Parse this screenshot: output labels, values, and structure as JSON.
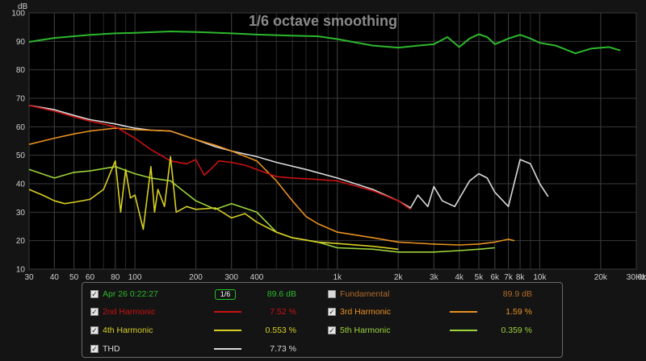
{
  "chart_data": {
    "type": "line",
    "title": "1/6 octave smoothing",
    "ylabel": "dB",
    "xlabel": "Hz",
    "x_scale": "log",
    "xlim": [
      30,
      30000
    ],
    "ylim": [
      10,
      100
    ],
    "grid": true,
    "x_ticks": [
      30,
      40,
      50,
      60,
      80,
      100,
      200,
      300,
      400,
      1000,
      2000,
      3000,
      4000,
      5000,
      6000,
      7000,
      8000,
      10000,
      20000,
      30000
    ],
    "x_tick_labels": [
      "30",
      "40",
      "50",
      "60",
      "80",
      "100",
      "200",
      "300",
      "400",
      "1k",
      "2k",
      "3k",
      "4k",
      "5k",
      "6k",
      "7k",
      "8k",
      "10k",
      "20k",
      "30.0k"
    ],
    "y_ticks": [
      10,
      20,
      30,
      40,
      50,
      60,
      70,
      80,
      90,
      100
    ],
    "series": [
      {
        "name": "Apr 26 0:22:27",
        "color": "#2db82d",
        "x": [
          30,
          40,
          50,
          60,
          80,
          100,
          150,
          200,
          300,
          400,
          600,
          800,
          1000,
          1500,
          2000,
          2500,
          3000,
          3500,
          4000,
          4500,
          5000,
          5500,
          6000,
          7000,
          8000,
          9000,
          10000,
          12000,
          15000,
          18000,
          22000,
          25000
        ],
        "y": [
          89.8,
          91.2,
          91.8,
          92.3,
          92.8,
          93.0,
          93.5,
          93.3,
          92.8,
          92.4,
          92.0,
          91.8,
          90.8,
          88.5,
          87.8,
          88.5,
          89.0,
          91.5,
          88.0,
          91.0,
          92.5,
          91.5,
          89.0,
          91.0,
          92.3,
          91.0,
          89.5,
          88.5,
          85.8,
          87.5,
          88.0,
          86.8
        ]
      },
      {
        "name": "THD",
        "color": "#d9d9d9",
        "x": [
          30,
          40,
          50,
          60,
          80,
          100,
          120,
          150,
          200,
          250,
          300,
          400,
          500,
          700,
          1000,
          1500,
          2000,
          2300,
          2500,
          2800,
          3000,
          3300,
          3800,
          4500,
          5000,
          5500,
          6000,
          7000,
          8000,
          9000,
          10000,
          11000
        ],
        "y": [
          67.5,
          66.0,
          64.0,
          62.5,
          61.0,
          59.5,
          58.8,
          58.5,
          55.5,
          53.0,
          51.5,
          49.5,
          47.5,
          45.0,
          42.0,
          38.0,
          34.0,
          31.5,
          36.0,
          32.0,
          39.0,
          34.0,
          32.0,
          41.0,
          43.5,
          42.0,
          37.0,
          32.0,
          48.5,
          47.0,
          40.0,
          35.5
        ]
      },
      {
        "name": "2nd Harmonic",
        "color": "#cc1111",
        "x": [
          30,
          40,
          50,
          60,
          80,
          100,
          120,
          150,
          180,
          200,
          220,
          240,
          260,
          300,
          350,
          400,
          500,
          600,
          800,
          1000,
          1500,
          2000,
          2300
        ],
        "y": [
          67.5,
          65.5,
          63.5,
          62.0,
          60.0,
          56.0,
          52.0,
          48.0,
          47.0,
          48.5,
          43.0,
          45.5,
          48.0,
          47.5,
          46.5,
          45.0,
          42.5,
          42.0,
          41.5,
          41.0,
          37.5,
          34.0,
          31.0
        ]
      },
      {
        "name": "3rd Harmonic",
        "color": "#e89020",
        "x": [
          30,
          40,
          50,
          60,
          80,
          100,
          120,
          150,
          200,
          250,
          300,
          400,
          500,
          600,
          700,
          800,
          1000,
          1500,
          2000,
          3000,
          4000,
          5000,
          6000,
          7000,
          7500
        ],
        "y": [
          53.8,
          56.0,
          57.5,
          58.5,
          59.5,
          59.0,
          58.8,
          58.5,
          55.5,
          53.5,
          51.5,
          48.0,
          41.0,
          34.0,
          28.5,
          26.0,
          23.0,
          21.0,
          19.5,
          18.8,
          18.5,
          18.8,
          19.5,
          20.5,
          20.0
        ]
      },
      {
        "name": "4th Harmonic",
        "color": "#d8cf22",
        "x": [
          30,
          35,
          40,
          45,
          50,
          60,
          70,
          80,
          85,
          90,
          95,
          100,
          110,
          120,
          125,
          130,
          140,
          150,
          160,
          180,
          200,
          250,
          300,
          350,
          400,
          500,
          600,
          800,
          1000,
          1500,
          2000
        ],
        "y": [
          38.0,
          36.0,
          34.0,
          33.0,
          33.5,
          34.5,
          38.0,
          48.0,
          30.0,
          45.0,
          35.0,
          36.0,
          24.0,
          46.0,
          30.0,
          38.0,
          32.0,
          49.5,
          30.0,
          32.0,
          31.0,
          31.5,
          28.0,
          29.5,
          26.5,
          23.0,
          21.0,
          19.5,
          19.0,
          18.0,
          17.0
        ]
      },
      {
        "name": "5th Harmonic",
        "color": "#9cd43c",
        "x": [
          30,
          40,
          50,
          60,
          80,
          100,
          120,
          150,
          200,
          250,
          300,
          400,
          500,
          600,
          800,
          1000,
          1500,
          2000,
          3000,
          4000,
          5000,
          6000
        ],
        "y": [
          45.0,
          42.0,
          44.0,
          44.5,
          46.0,
          43.5,
          42.0,
          41.0,
          34.0,
          31.0,
          33.0,
          30.0,
          23.0,
          21.0,
          19.5,
          17.5,
          17.0,
          16.0,
          16.0,
          16.5,
          17.0,
          17.5
        ]
      }
    ]
  },
  "legend": {
    "items": [
      {
        "label": "Apr 26 0:22:27",
        "value": "89.6 dB",
        "checked": "✓"
      },
      {
        "label": "Fundamental",
        "value": "89.9 dB",
        "checked": ""
      },
      {
        "label": "2nd Harmonic",
        "value": "7.52 %",
        "checked": "✓"
      },
      {
        "label": "3rd Harmonic",
        "value": "1.59 %",
        "checked": "✓"
      },
      {
        "label": "4th Harmonic",
        "value": "0.553 %",
        "checked": "✓"
      },
      {
        "label": "5th Harmonic",
        "value": "0.359 %",
        "checked": "✓"
      },
      {
        "label": "THD",
        "value": "7.73 %",
        "checked": "✓"
      }
    ],
    "smoothing_label": "1/6",
    "colors": {
      "measurement": "#2db82d",
      "fundamental": "#b06a2a",
      "h2": "#cc1111",
      "h3": "#e89020",
      "h4": "#d8cf22",
      "h5": "#9cd43c",
      "thd": "#d9d9d9"
    }
  }
}
